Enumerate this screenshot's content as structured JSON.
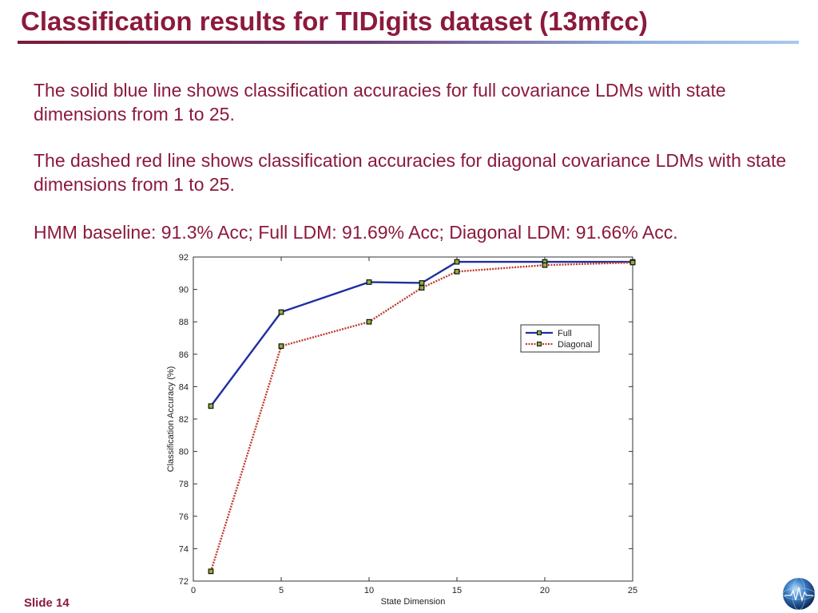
{
  "slide": {
    "title": "Classification results for TIDigits dataset (13mfcc)",
    "paragraphs": [
      "The solid blue line shows classification accuracies for full covariance LDMs with state dimensions from 1 to 25.",
      "The dashed red line shows classification accuracies for diagonal covariance LDMs with state dimensions from 1 to 25.",
      "HMM baseline: 91.3% Acc; Full LDM: 91.69% Acc; Diagonal LDM: 91.66% Acc."
    ],
    "footer": "Slide 14",
    "logo_icon": "globe-icon",
    "colors": {
      "title": "#8b1a3c",
      "text": "#8b1a3c"
    }
  },
  "chart_data": {
    "type": "line",
    "xlabel": "State Dimension",
    "ylabel": "Classification Accuracy (%)",
    "xlim": [
      0,
      25
    ],
    "ylim": [
      72,
      92
    ],
    "xticks": [
      0,
      5,
      10,
      15,
      20,
      25
    ],
    "yticks": [
      72,
      74,
      76,
      78,
      80,
      82,
      84,
      86,
      88,
      90,
      92
    ],
    "grid": false,
    "legend": "upper-right",
    "series": [
      {
        "name": "Full",
        "style": "solid",
        "color": "#1f2fa0",
        "x": [
          1,
          5,
          10,
          13,
          15,
          20,
          25
        ],
        "y": [
          82.8,
          88.6,
          90.45,
          90.4,
          91.7,
          91.7,
          91.7
        ]
      },
      {
        "name": "Diagonal",
        "style": "dotted",
        "color": "#c0392b",
        "x": [
          1,
          5,
          10,
          13,
          15,
          20,
          25
        ],
        "y": [
          72.6,
          86.5,
          88.0,
          90.1,
          91.1,
          91.5,
          91.66
        ]
      }
    ]
  }
}
